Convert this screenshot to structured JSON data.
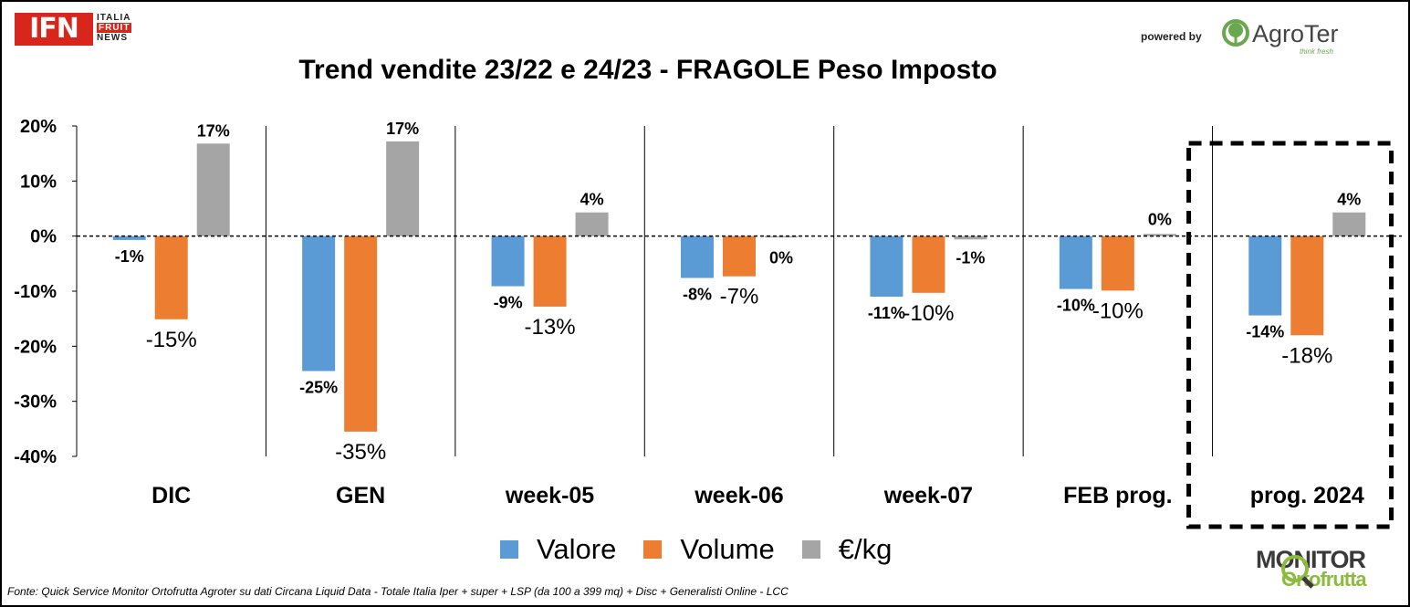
{
  "header": {
    "ifn_logo": {
      "abbr": "IFN",
      "line1": "ITALIA",
      "line2": "FRUIT",
      "line3": "NEWS"
    },
    "powered_by": "powered by",
    "agroter": {
      "name": "AgroTer",
      "tagline": "think fresh"
    }
  },
  "chart_data": {
    "type": "bar",
    "title": "Trend vendite 23/22 e 24/23 - FRAGOLE Peso Imposto",
    "categories": [
      "DIC",
      "GEN",
      "week-05",
      "week-06",
      "week-07",
      "FEB prog.",
      "prog. 2024"
    ],
    "series": [
      {
        "name": "Valore",
        "color": "#5b9bd5",
        "values": [
          -0.7,
          -24.5,
          -9.1,
          -7.6,
          -11.0,
          -9.6,
          -14.4
        ],
        "labels": [
          "-1%",
          "-25%",
          "-9%",
          "-8%",
          "-11%",
          "-10%",
          "-14%"
        ]
      },
      {
        "name": "Volume",
        "color": "#ed7d31",
        "values": [
          -15.1,
          -35.5,
          -12.8,
          -7.3,
          -10.3,
          -9.9,
          -18.0
        ],
        "labels": [
          "-15%",
          "-35%",
          "-13%",
          "-7%",
          "-10%",
          "-10%",
          "-18%"
        ]
      },
      {
        "name": "€/kg",
        "color": "#a5a5a5",
        "values": [
          16.8,
          17.2,
          4.3,
          -0.2,
          -0.6,
          0.4,
          4.3
        ],
        "labels": [
          "17%",
          "17%",
          "4%",
          "0%",
          "-1%",
          "0%",
          "4%"
        ]
      }
    ],
    "ylim": [
      -40,
      20
    ],
    "yticks": [
      20,
      10,
      0,
      -10,
      -20,
      -30,
      -40
    ],
    "ytick_labels": [
      "20%",
      "10%",
      "0%",
      "-10%",
      "-20%",
      "-30%",
      "-40%"
    ],
    "xlabel": "",
    "ylabel": "",
    "legend": "bottom",
    "grid": false,
    "highlighted_category": "prog. 2024"
  },
  "footer": {
    "source": "Fonte: Quick Service Monitor Ortofrutta Agroter su dati Circana Liquid Data - Totale Italia Iper + super + LSP (da 100 a 399 mq) + Disc + Generalisti Online - LCC"
  },
  "monitor_logo": {
    "top": "MONITOR",
    "bottom": "Ortofrutta"
  }
}
